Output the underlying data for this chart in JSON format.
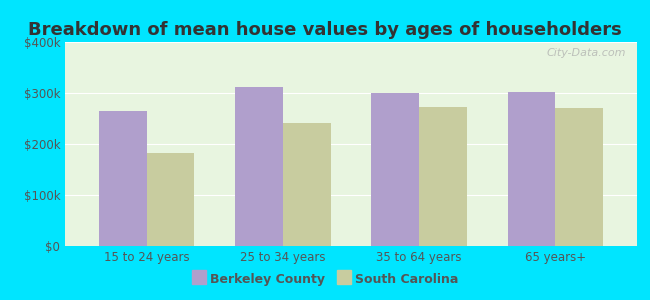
{
  "title": "Breakdown of mean house values by ages of householders",
  "categories": [
    "15 to 24 years",
    "25 to 34 years",
    "35 to 64 years",
    "65 years+"
  ],
  "berkeley_values": [
    265000,
    312000,
    300000,
    302000
  ],
  "sc_values": [
    183000,
    242000,
    272000,
    270000
  ],
  "berkeley_color": "#b09fcc",
  "sc_color": "#c8cc9f",
  "ylim": [
    0,
    400000
  ],
  "yticks": [
    0,
    100000,
    200000,
    300000,
    400000
  ],
  "ytick_labels": [
    "$0",
    "$100k",
    "$200k",
    "$300k",
    "$400k"
  ],
  "bg_color": "#e8f5e0",
  "outer_bg": "#00e5ff",
  "bar_width": 0.35,
  "title_fontsize": 13,
  "legend_fontsize": 9,
  "tick_fontsize": 8.5,
  "watermark_text": "City-Data.com",
  "legend_labels": [
    "Berkeley County",
    "South Carolina"
  ]
}
